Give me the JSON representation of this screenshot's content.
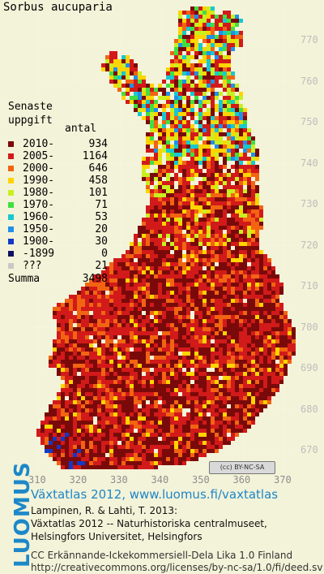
{
  "title": "Sorbus aucuparia",
  "legend": {
    "heading_line1": "Senaste",
    "heading_line2": "uppgift",
    "count_header": "antal",
    "rows": [
      {
        "label": "2010-",
        "count": "934",
        "color": "#7a0a0a"
      },
      {
        "label": "2005-",
        "count": "1164",
        "color": "#d21a1a"
      },
      {
        "label": "2000-",
        "count": "646",
        "color": "#f26412"
      },
      {
        "label": "1990-",
        "count": "458",
        "color": "#ffd400"
      },
      {
        "label": "1980-",
        "count": "101",
        "color": "#c8f020"
      },
      {
        "label": "1970-",
        "count": "71",
        "color": "#40e040"
      },
      {
        "label": "1960-",
        "count": "53",
        "color": "#18c8d0"
      },
      {
        "label": "1950-",
        "count": "20",
        "color": "#2090e8"
      },
      {
        "label": "1900-",
        "count": "30",
        "color": "#1438c8"
      },
      {
        "label": "-1899",
        "count": "0",
        "color": "#101060"
      },
      {
        "label": "???",
        "count": "21",
        "color": "#c8c8c8"
      }
    ],
    "summa_label": "Summa",
    "summa_count": "3498"
  },
  "axes": {
    "y_ticks": [
      "770",
      "760",
      "750",
      "740",
      "730",
      "720",
      "710",
      "700",
      "690",
      "680",
      "670"
    ],
    "x_ticks": [
      "310",
      "320",
      "330",
      "340",
      "350",
      "360",
      "370"
    ]
  },
  "license_badge": "(cc) BY-NC-SA",
  "brand": "LUOMUS",
  "credits": {
    "headline": "Växtatlas 2012, www.luomus.fi/vaxtatlas",
    "line1": "Lampinen, R. & Lahti, T. 2013:",
    "line2": "Växtatlas 2012 -- Naturhistoriska centralmuseet,",
    "line3": "Helsingfors Universitet, Helsingfors",
    "license_line1": "CC Erkännande-Ickekommersiell-Dela Lika 1.0 Finland",
    "license_line2": "http://creativecommons.org/licenses/by-nc-sa/1.0/fi/deed.sv"
  }
}
